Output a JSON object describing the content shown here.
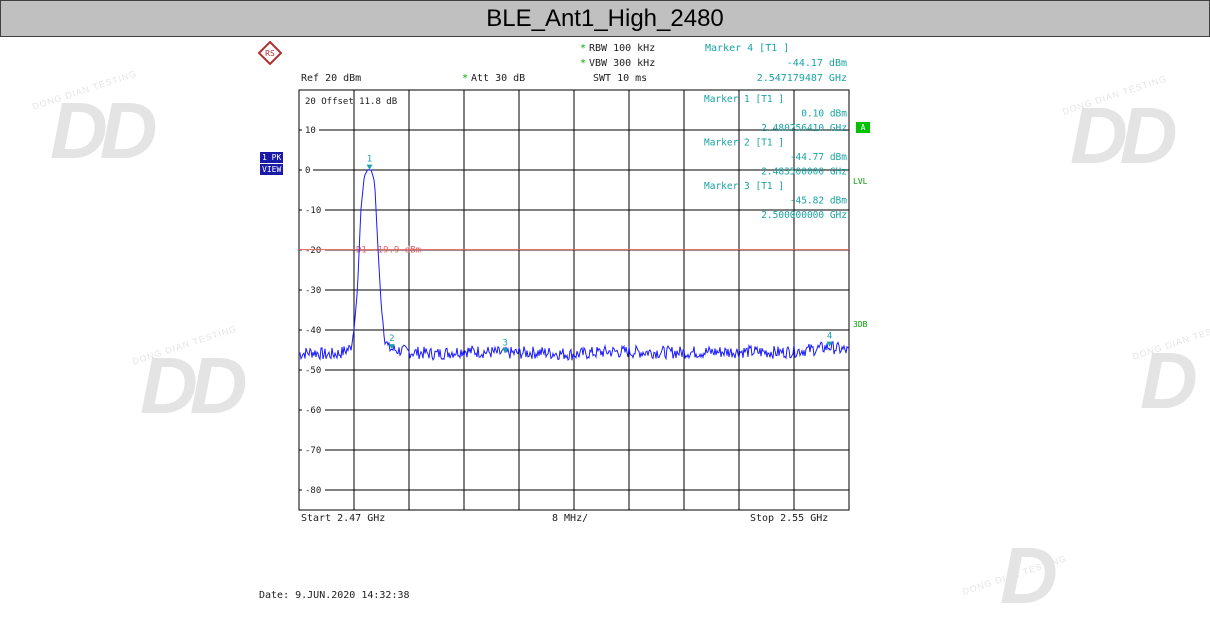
{
  "window": {
    "title": "BLE_Ant1_High_2480"
  },
  "watermark": {
    "text": "DONG DIAN TESTING"
  },
  "header": {
    "ref_label": "Ref  20 dBm",
    "att_label": "Att  30 dB",
    "rbw_label": "RBW 100 kHz",
    "vbw_label": "VBW 300 kHz",
    "swt_label": "SWT 10 ms",
    "star": "*"
  },
  "marker_block": {
    "m4_title": "Marker 4 [T1 ]",
    "m4_level": "-44.17 dBm",
    "m4_freq": "2.547179487 GHz",
    "m1_title": "Marker 1 [T1 ]",
    "m1_level": "0.10 dBm",
    "m1_freq": "2.480256410 GHz",
    "m2_title": "Marker 2 [T1 ]",
    "m2_level": "-44.77 dBm",
    "m2_freq": "2.483500000 GHz",
    "m3_title": "Marker 3 [T1 ]",
    "m3_level": "-45.82 dBm",
    "m3_freq": "2.500000000 GHz"
  },
  "left_panel": {
    "trace_badge": "1 PK",
    "view_badge": "VIEW"
  },
  "right_panel": {
    "a_badge": "A",
    "lvl_label": "LVL",
    "db3_label": "3DB"
  },
  "grid_info": {
    "offset_label": "20 Offset  11.8 dB"
  },
  "footer": {
    "start_label": "Start  2.47 GHz",
    "span_label": "8 MHz/",
    "stop_label": "Stop  2.55 GHz",
    "date_label": "Date: 9.JUN.2020  14:32:38"
  },
  "colors": {
    "trace": "#1a1aff",
    "limit_line": "#e06060",
    "marker": "#1aa3a3",
    "grid": "#000000"
  },
  "chart_data": {
    "type": "line",
    "title": "BLE_Ant1_High_2480",
    "x_unit": "GHz",
    "y_unit": "dBm",
    "xlim": [
      2.47,
      2.55
    ],
    "ylim": [
      -85,
      20
    ],
    "ytick_labels": [
      "20",
      "10",
      "0",
      "-10",
      "-20",
      "-30",
      "-40",
      "-50",
      "-60",
      "-70",
      "-80"
    ],
    "ytick_values": [
      20,
      10,
      0,
      -10,
      -20,
      -30,
      -40,
      -50,
      -60,
      -70,
      -80
    ],
    "grid": true,
    "limit_line": {
      "name": "D1",
      "value": -19.9,
      "label": "D1  -19.9 dBm"
    },
    "markers": [
      {
        "id": "1",
        "x": 2.48025641,
        "y": 0.1
      },
      {
        "id": "2",
        "x": 2.4835,
        "y": -44.77
      },
      {
        "id": "3",
        "x": 2.5,
        "y": -45.82
      },
      {
        "id": "4",
        "x": 2.547179487,
        "y": -44.17
      }
    ],
    "series": [
      {
        "name": "",
        "points": [
          [
            2.47,
            -46
          ],
          [
            2.472,
            -45.5
          ],
          [
            2.474,
            -46.2
          ],
          [
            2.476,
            -45.8
          ],
          [
            2.4775,
            -44.5
          ],
          [
            2.478,
            -40
          ],
          [
            2.4785,
            -30
          ],
          [
            2.479,
            -10
          ],
          [
            2.4795,
            -1.5
          ],
          [
            2.48,
            0.1
          ],
          [
            2.4805,
            0
          ],
          [
            2.481,
            -3
          ],
          [
            2.4815,
            -20
          ],
          [
            2.482,
            -35
          ],
          [
            2.4825,
            -42
          ],
          [
            2.483,
            -44.5
          ],
          [
            2.4835,
            -44.8
          ],
          [
            2.486,
            -45.5
          ],
          [
            2.49,
            -46
          ],
          [
            2.494,
            -45.2
          ],
          [
            2.497,
            -45.5
          ],
          [
            2.5,
            -45.8
          ],
          [
            2.505,
            -45.6
          ],
          [
            2.51,
            -46.1
          ],
          [
            2.515,
            -45.4
          ],
          [
            2.52,
            -45.5
          ],
          [
            2.525,
            -45.6
          ],
          [
            2.53,
            -45.5
          ],
          [
            2.535,
            -45.4
          ],
          [
            2.54,
            -45.6
          ],
          [
            2.545,
            -44.8
          ],
          [
            2.5472,
            -44.2
          ],
          [
            2.55,
            -45.3
          ]
        ]
      }
    ]
  }
}
